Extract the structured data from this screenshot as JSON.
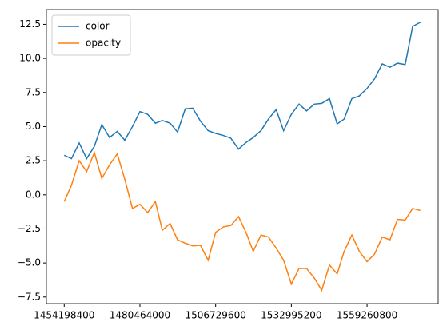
{
  "chart_data": {
    "type": "line",
    "x": [
      1454198400,
      1456704000,
      1459382400,
      1461974400,
      1464652800,
      1467244800,
      1469923200,
      1472601600,
      1475193600,
      1477872000,
      1480464000,
      1483142400,
      1485820800,
      1488240000,
      1490918400,
      1493510400,
      1496188800,
      1498780800,
      1501459200,
      1504137600,
      1506729600,
      1509408000,
      1512000000,
      1514678400,
      1517356800,
      1519776000,
      1522454400,
      1525046400,
      1527724800,
      1530316800,
      1532995200,
      1535673600,
      1538265600,
      1540944000,
      1543536000,
      1546214400,
      1548892800,
      1551312000,
      1553990400,
      1556582400,
      1559260800,
      1561852800,
      1564531200,
      1567209600,
      1569801600,
      1572480000,
      1575072000,
      1577750400
    ],
    "series": [
      {
        "name": "color",
        "color": "#1f77b4",
        "values": [
          2.9,
          2.65,
          3.8,
          2.65,
          3.55,
          5.15,
          4.2,
          4.65,
          4.0,
          5.0,
          6.1,
          5.9,
          5.25,
          5.45,
          5.25,
          4.6,
          6.3,
          6.35,
          5.4,
          4.7,
          4.5,
          4.35,
          4.15,
          3.35,
          3.85,
          4.2,
          4.7,
          5.55,
          6.25,
          4.7,
          5.9,
          6.65,
          6.15,
          6.65,
          6.7,
          7.05,
          5.2,
          5.55,
          7.05,
          7.25,
          7.8,
          8.5,
          9.6,
          9.35,
          9.65,
          9.55,
          12.35,
          12.65
        ]
      },
      {
        "name": "opacity",
        "color": "#ff7f0e",
        "values": [
          -0.5,
          0.7,
          2.5,
          1.7,
          3.1,
          1.2,
          2.2,
          3.0,
          1.15,
          -1.0,
          -0.7,
          -1.3,
          -0.5,
          -2.6,
          -2.1,
          -3.3,
          -3.55,
          -3.75,
          -3.7,
          -4.8,
          -2.75,
          -2.35,
          -2.25,
          -1.6,
          -2.8,
          -4.15,
          -2.95,
          -3.1,
          -3.9,
          -4.8,
          -6.55,
          -5.4,
          -5.4,
          -6.1,
          -7.0,
          -5.15,
          -5.8,
          -4.15,
          -2.95,
          -4.15,
          -4.9,
          -4.35,
          -3.1,
          -3.3,
          -1.8,
          -1.85,
          -1.0,
          -1.15
        ]
      }
    ],
    "xlim": [
      1448020800,
      1583928000
    ],
    "xticks": [
      1454198400,
      1480464000,
      1506729600,
      1532995200,
      1559260800
    ],
    "ylim": [
      -7.98,
      13.58
    ],
    "yticks": [
      {
        "value": -7.5,
        "label": "−7.5"
      },
      {
        "value": -5.0,
        "label": "−5.0"
      },
      {
        "value": -2.5,
        "label": "−2.5"
      },
      {
        "value": 0,
        "label": "0.0"
      },
      2.5,
      {
        "value": 5,
        "label": "5.0"
      },
      7.5,
      {
        "value": 10,
        "label": "10.0"
      },
      12.5
    ],
    "legend": "upper left"
  }
}
